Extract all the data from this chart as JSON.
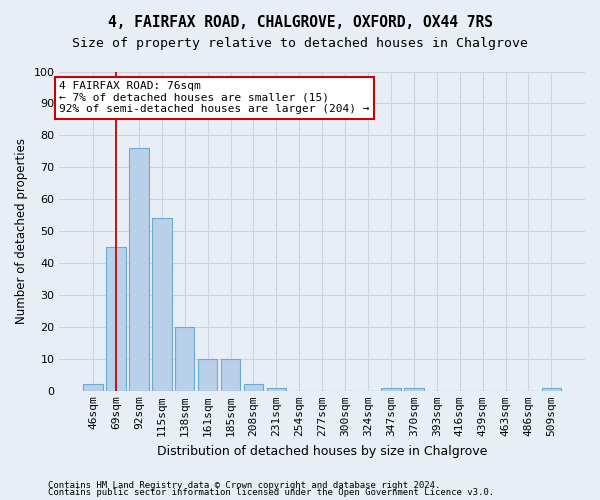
{
  "title": "4, FAIRFAX ROAD, CHALGROVE, OXFORD, OX44 7RS",
  "subtitle": "Size of property relative to detached houses in Chalgrove",
  "xlabel": "Distribution of detached houses by size in Chalgrove",
  "ylabel": "Number of detached properties",
  "categories": [
    "46sqm",
    "69sqm",
    "92sqm",
    "115sqm",
    "138sqm",
    "161sqm",
    "185sqm",
    "208sqm",
    "231sqm",
    "254sqm",
    "277sqm",
    "300sqm",
    "324sqm",
    "347sqm",
    "370sqm",
    "393sqm",
    "416sqm",
    "439sqm",
    "463sqm",
    "486sqm",
    "509sqm"
  ],
  "values": [
    2,
    45,
    76,
    54,
    20,
    10,
    10,
    2,
    1,
    0,
    0,
    0,
    0,
    1,
    1,
    0,
    0,
    0,
    0,
    0,
    1
  ],
  "bar_color": "#b8d0e8",
  "bar_edge_color": "#6aaad4",
  "bar_edge_width": 0.8,
  "grid_color": "#c8d4e4",
  "background_color": "#e8eef6",
  "red_line_x": 0.98,
  "annotation_text": "4 FAIRFAX ROAD: 76sqm\n← 7% of detached houses are smaller (15)\n92% of semi-detached houses are larger (204) →",
  "annotation_box_color": "#ffffff",
  "annotation_box_edge": "#cc0000",
  "ylim": [
    0,
    100
  ],
  "yticks": [
    0,
    10,
    20,
    30,
    40,
    50,
    60,
    70,
    80,
    90,
    100
  ],
  "title_fontsize": 10.5,
  "subtitle_fontsize": 9.5,
  "ylabel_fontsize": 8.5,
  "xlabel_fontsize": 9,
  "tick_fontsize": 8,
  "annotation_fontsize": 8,
  "footnote1": "Contains HM Land Registry data © Crown copyright and database right 2024.",
  "footnote2": "Contains public sector information licensed under the Open Government Licence v3.0.",
  "footnote_fontsize": 6.5
}
